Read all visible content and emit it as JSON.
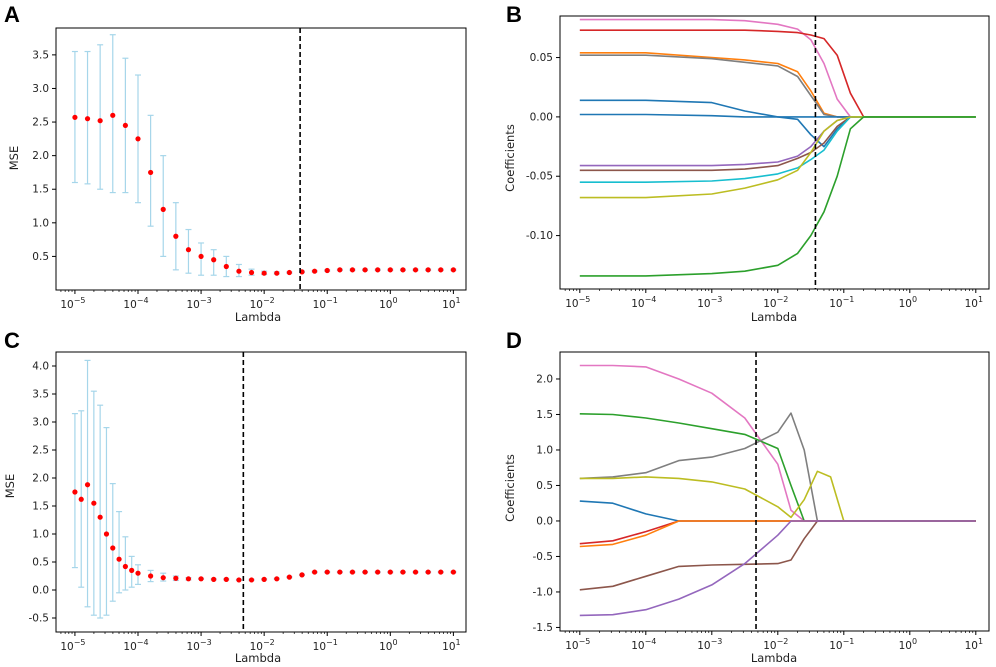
{
  "figure": {
    "panels": [
      {
        "letter": "A",
        "x_label": "Lambda",
        "y_label": "MSE"
      },
      {
        "letter": "B",
        "x_label": "Lambda",
        "y_label": "Coefficients"
      },
      {
        "letter": "C",
        "x_label": "Lambda",
        "y_label": "MSE"
      },
      {
        "letter": "D",
        "x_label": "Lambda",
        "y_label": "Coefficients"
      }
    ]
  },
  "colors": {
    "errorbar": "#a6d6ea",
    "mean_points": "#ff0000",
    "cutoff_line": "#000000",
    "series": [
      "#1f77b4",
      "#ff7f0e",
      "#2ca02c",
      "#d62728",
      "#9467bd",
      "#8c564b",
      "#e377c2",
      "#7f7f7f",
      "#bcbd22",
      "#17becf"
    ]
  },
  "chart_data": [
    {
      "panel": "A",
      "type": "scatter",
      "title": "",
      "xlabel": "Lambda",
      "ylabel": "MSE",
      "xscale": "log",
      "xlim": [
        -5.3,
        1.2
      ],
      "ylim": [
        0.0,
        3.9
      ],
      "x_ticks": [
        -5,
        -4,
        -3,
        -2,
        -1,
        0,
        1
      ],
      "y_ticks": [
        0.5,
        1.0,
        1.5,
        2.0,
        2.5,
        3.0,
        3.5
      ],
      "y_tick_labels": [
        "0.5",
        "1.0",
        "1.5",
        "2.0",
        "2.5",
        "3.0",
        "3.5"
      ],
      "cutoff_log10_lambda": -1.43,
      "cv_curve": {
        "log10_lambda": [
          -5,
          -4.8,
          -4.6,
          -4.4,
          -4.2,
          -4.0,
          -3.8,
          -3.6,
          -3.4,
          -3.2,
          -3.0,
          -2.8,
          -2.6,
          -2.4,
          -2.2,
          -2.0,
          -1.8,
          -1.6,
          -1.4,
          -1.2,
          -1.0,
          -0.8,
          -0.6,
          -0.4,
          -0.2,
          0.0,
          0.2,
          0.4,
          0.6,
          0.8,
          1.0
        ],
        "mean_mse": [
          2.57,
          2.55,
          2.52,
          2.6,
          2.45,
          2.25,
          1.75,
          1.2,
          0.8,
          0.6,
          0.5,
          0.45,
          0.35,
          0.28,
          0.26,
          0.25,
          0.25,
          0.26,
          0.27,
          0.28,
          0.29,
          0.3,
          0.3,
          0.3,
          0.3,
          0.3,
          0.3,
          0.3,
          0.3,
          0.3,
          0.3
        ],
        "upper": [
          3.55,
          3.55,
          3.65,
          3.8,
          3.45,
          3.2,
          2.6,
          2.0,
          1.3,
          0.9,
          0.7,
          0.6,
          0.5,
          0.38,
          0.31,
          0.28,
          0.27,
          0.27,
          0.28,
          0.29,
          0.3,
          0.31,
          0.31,
          0.31,
          0.31,
          0.31,
          0.31,
          0.31,
          0.31,
          0.31,
          0.31
        ],
        "lower": [
          1.6,
          1.58,
          1.5,
          1.45,
          1.45,
          1.3,
          0.95,
          0.5,
          0.3,
          0.25,
          0.22,
          0.22,
          0.2,
          0.2,
          0.22,
          0.23,
          0.24,
          0.25,
          0.26,
          0.27,
          0.28,
          0.29,
          0.29,
          0.29,
          0.29,
          0.29,
          0.29,
          0.29,
          0.29,
          0.29,
          0.29
        ]
      }
    },
    {
      "panel": "B",
      "type": "line",
      "title": "",
      "xlabel": "Lambda",
      "ylabel": "Coefficients",
      "xscale": "log",
      "xlim": [
        -5.3,
        1.2
      ],
      "ylim": [
        -0.145,
        0.085
      ],
      "x_ticks": [
        -5,
        -4,
        -3,
        -2,
        -1,
        0,
        1
      ],
      "y_ticks": [
        -0.1,
        -0.05,
        0.0,
        0.05
      ],
      "y_tick_labels": [
        "-0.10",
        "-0.05",
        "0.00",
        "0.05"
      ],
      "cutoff_log10_lambda": -1.43,
      "coef_x": [
        -5,
        -4,
        -3,
        -2.5,
        -2,
        -1.7,
        -1.5,
        -1.3,
        -1.1,
        -0.9,
        -0.7,
        1.0
      ],
      "series": [
        {
          "name": "coef1",
          "color_index": 6,
          "values": [
            0.082,
            0.082,
            0.082,
            0.081,
            0.078,
            0.074,
            0.065,
            0.045,
            0.015,
            0,
            0,
            0
          ]
        },
        {
          "name": "coef2",
          "color_index": 3,
          "values": [
            0.073,
            0.073,
            0.073,
            0.073,
            0.072,
            0.071,
            0.069,
            0.066,
            0.052,
            0.02,
            0,
            0
          ]
        },
        {
          "name": "coef3",
          "color_index": 1,
          "values": [
            0.054,
            0.054,
            0.05,
            0.048,
            0.045,
            0.038,
            0.022,
            0.003,
            0,
            0,
            0,
            0
          ]
        },
        {
          "name": "coef4",
          "color_index": 7,
          "values": [
            0.052,
            0.052,
            0.049,
            0.046,
            0.043,
            0.034,
            0.018,
            0.002,
            0,
            0,
            0,
            0
          ]
        },
        {
          "name": "coef5",
          "color_index": 0,
          "values": [
            0.014,
            0.014,
            0.012,
            0.005,
            0,
            0,
            0,
            0,
            0,
            0,
            0,
            0
          ]
        },
        {
          "name": "coef6",
          "color_index": 0,
          "values": [
            0.002,
            0.002,
            0.001,
            0,
            0,
            -0.002,
            -0.015,
            -0.025,
            -0.01,
            0,
            0,
            0
          ]
        },
        {
          "name": "coef7",
          "color_index": 4,
          "values": [
            -0.041,
            -0.041,
            -0.041,
            -0.04,
            -0.038,
            -0.033,
            -0.025,
            -0.012,
            -0.003,
            0,
            0,
            0
          ]
        },
        {
          "name": "coef8",
          "color_index": 5,
          "values": [
            -0.045,
            -0.045,
            -0.045,
            -0.044,
            -0.041,
            -0.035,
            -0.03,
            -0.022,
            -0.008,
            0,
            0,
            0
          ]
        },
        {
          "name": "coef9",
          "color_index": 9,
          "values": [
            -0.055,
            -0.055,
            -0.054,
            -0.052,
            -0.048,
            -0.043,
            -0.036,
            -0.028,
            -0.012,
            0,
            0,
            0
          ]
        },
        {
          "name": "coef10",
          "color_index": 8,
          "values": [
            -0.068,
            -0.068,
            -0.065,
            -0.06,
            -0.053,
            -0.045,
            -0.03,
            -0.012,
            -0.003,
            0,
            0,
            0
          ]
        },
        {
          "name": "coef11",
          "color_index": 2,
          "values": [
            -0.134,
            -0.134,
            -0.132,
            -0.13,
            -0.125,
            -0.115,
            -0.1,
            -0.08,
            -0.05,
            -0.01,
            0,
            0
          ]
        }
      ]
    },
    {
      "panel": "C",
      "type": "scatter",
      "title": "",
      "xlabel": "Lambda",
      "ylabel": "MSE",
      "xscale": "log",
      "xlim": [
        -5.3,
        1.2
      ],
      "ylim": [
        -0.75,
        4.25
      ],
      "x_ticks": [
        -5,
        -4,
        -3,
        -2,
        -1,
        0,
        1
      ],
      "y_ticks": [
        -0.5,
        0.0,
        0.5,
        1.0,
        1.5,
        2.0,
        2.5,
        3.0,
        3.5,
        4.0
      ],
      "y_tick_labels": [
        "-0.5",
        "0.0",
        "0.5",
        "1.0",
        "1.5",
        "2.0",
        "2.5",
        "3.0",
        "3.5",
        "4.0"
      ],
      "cutoff_log10_lambda": -2.33,
      "cv_curve": {
        "log10_lambda": [
          -5,
          -4.9,
          -4.8,
          -4.7,
          -4.6,
          -4.5,
          -4.4,
          -4.3,
          -4.2,
          -4.1,
          -4.0,
          -3.8,
          -3.6,
          -3.4,
          -3.2,
          -3.0,
          -2.8,
          -2.6,
          -2.4,
          -2.2,
          -2.0,
          -1.8,
          -1.6,
          -1.4,
          -1.2,
          -1.0,
          -0.8,
          -0.6,
          -0.4,
          -0.2,
          0.0,
          0.2,
          0.4,
          0.6,
          0.8,
          1.0
        ],
        "mean_mse": [
          1.75,
          1.62,
          1.88,
          1.55,
          1.3,
          1.0,
          0.75,
          0.55,
          0.42,
          0.35,
          0.3,
          0.25,
          0.22,
          0.21,
          0.2,
          0.2,
          0.19,
          0.19,
          0.18,
          0.18,
          0.19,
          0.2,
          0.23,
          0.27,
          0.32,
          0.32,
          0.32,
          0.32,
          0.32,
          0.32,
          0.32,
          0.32,
          0.32,
          0.32,
          0.32,
          0.32
        ],
        "upper": [
          3.15,
          3.2,
          4.1,
          3.55,
          3.3,
          2.9,
          1.9,
          1.4,
          0.95,
          0.6,
          0.45,
          0.35,
          0.3,
          0.25,
          0.22,
          0.21,
          0.2,
          0.2,
          0.19,
          0.19,
          0.2,
          0.21,
          0.24,
          0.28,
          0.33,
          0.33,
          0.33,
          0.33,
          0.33,
          0.33,
          0.33,
          0.33,
          0.33,
          0.33,
          0.33,
          0.33
        ],
        "lower": [
          0.4,
          0.05,
          -0.3,
          -0.45,
          -0.5,
          -0.45,
          -0.2,
          -0.05,
          0.0,
          0.05,
          0.1,
          0.15,
          0.16,
          0.17,
          0.18,
          0.19,
          0.18,
          0.18,
          0.17,
          0.17,
          0.18,
          0.19,
          0.22,
          0.26,
          0.31,
          0.31,
          0.31,
          0.31,
          0.31,
          0.31,
          0.31,
          0.31,
          0.31,
          0.31,
          0.31,
          0.31
        ]
      }
    },
    {
      "panel": "D",
      "type": "line",
      "title": "",
      "xlabel": "Lambda",
      "ylabel": "Coefficients",
      "xscale": "log",
      "xlim": [
        -5.3,
        1.2
      ],
      "ylim": [
        -1.55,
        2.38
      ],
      "x_ticks": [
        -5,
        -4,
        -3,
        -2,
        -1,
        0,
        1
      ],
      "y_ticks": [
        -1.5,
        -1.0,
        -0.5,
        0.0,
        0.5,
        1.0,
        1.5,
        2.0
      ],
      "y_tick_labels": [
        "-1.5",
        "-1.0",
        "-0.5",
        "0.0",
        "0.5",
        "1.0",
        "1.5",
        "2.0"
      ],
      "cutoff_log10_lambda": -2.33,
      "coef_x": [
        -5,
        -4.5,
        -4,
        -3.5,
        -3,
        -2.5,
        -2,
        -1.8,
        -1.6,
        -1.4,
        -1.2,
        -1.0,
        -0.8,
        1.0
      ],
      "series": [
        {
          "name": "coef1",
          "color_index": 6,
          "values": [
            2.19,
            2.19,
            2.17,
            2.0,
            1.8,
            1.45,
            0.8,
            0.15,
            0,
            0,
            0,
            0,
            0,
            0
          ]
        },
        {
          "name": "coef2",
          "color_index": 2,
          "values": [
            1.51,
            1.5,
            1.45,
            1.38,
            1.3,
            1.22,
            1.02,
            0.5,
            0,
            0,
            0,
            0,
            0,
            0
          ]
        },
        {
          "name": "coef3",
          "color_index": 7,
          "values": [
            0.6,
            0.62,
            0.68,
            0.85,
            0.9,
            1.02,
            1.25,
            1.52,
            1.0,
            0,
            0,
            0,
            0,
            0
          ]
        },
        {
          "name": "coef4",
          "color_index": 8,
          "values": [
            0.6,
            0.6,
            0.62,
            0.6,
            0.55,
            0.45,
            0.2,
            0.05,
            0.3,
            0.7,
            0.62,
            0,
            0,
            0
          ]
        },
        {
          "name": "coef5",
          "color_index": 0,
          "values": [
            0.28,
            0.25,
            0.1,
            0.0,
            0,
            0,
            0,
            0,
            0,
            0,
            0,
            0,
            0,
            0
          ]
        },
        {
          "name": "coef6",
          "color_index": 3,
          "values": [
            -0.32,
            -0.28,
            -0.15,
            0.0,
            0,
            0,
            0,
            0,
            0,
            0,
            0,
            0,
            0,
            0
          ]
        },
        {
          "name": "coef7",
          "color_index": 1,
          "values": [
            -0.36,
            -0.33,
            -0.2,
            0.0,
            0,
            0,
            0,
            0,
            0,
            0,
            0,
            0,
            0,
            0
          ]
        },
        {
          "name": "coef8",
          "color_index": 5,
          "values": [
            -0.97,
            -0.92,
            -0.78,
            -0.64,
            -0.62,
            -0.61,
            -0.6,
            -0.55,
            -0.25,
            0.0,
            0,
            0,
            0,
            0
          ]
        },
        {
          "name": "coef9",
          "color_index": 4,
          "values": [
            -1.33,
            -1.32,
            -1.25,
            -1.1,
            -0.9,
            -0.6,
            -0.2,
            0,
            0,
            0,
            0,
            0,
            0,
            0
          ]
        }
      ]
    }
  ]
}
